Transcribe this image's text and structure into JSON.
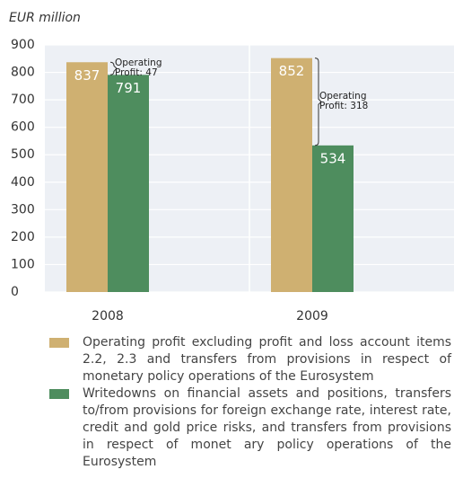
{
  "chart_data": {
    "type": "bar",
    "y_label": "EUR million",
    "categories": [
      "2008",
      "2009"
    ],
    "series": [
      {
        "name": "Operating profit excluding profit and loss account items 2.2, 2.3 and transfers from provisions in respect of monetary policy operations of the Eurosystem",
        "color": "#cfb071",
        "values": [
          837,
          852
        ]
      },
      {
        "name": "Writedowns on financial assets and positions, transfers to/from provisions for foreign exchange rate, interest rate, credit and gold price risks, and transfers from provisions in respect of monet ary policy operations of the Eurosystem",
        "color": "#4e8d5e",
        "values": [
          791,
          534
        ]
      }
    ],
    "annotations": [
      "Operating Profit: 47",
      "Operating Profit: 318"
    ],
    "ylim": [
      0,
      900
    ],
    "yticks": [
      0,
      100,
      200,
      300,
      400,
      500,
      600,
      700,
      800,
      900
    ],
    "grid": true
  }
}
